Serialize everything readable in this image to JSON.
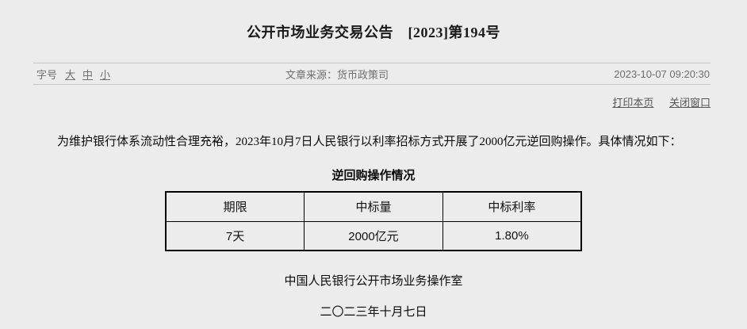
{
  "page": {
    "title": "公开市场业务交易公告　[2023]第194号"
  },
  "meta_bar": {
    "font_size_label": "字号",
    "font_size_options": [
      "大",
      "中",
      "小"
    ],
    "source_label": "文章来源：",
    "source_value": "货币政策司",
    "timestamp": "2023-10-07 09:20:30"
  },
  "actions": {
    "print_label": "打印本页",
    "close_label": "关闭窗口"
  },
  "article": {
    "paragraph": "为维护银行体系流动性合理充裕，2023年10月7日人民银行以利率招标方式开展了2000亿元逆回购操作。具体情况如下：",
    "table_title": "逆回购操作情况",
    "table": {
      "headers": [
        "期限",
        "中标量",
        "中标利率"
      ],
      "rows": [
        [
          "7天",
          "2000亿元",
          "1.80%"
        ]
      ]
    },
    "signature": "中国人民银行公开市场业务操作室",
    "date": "二〇二三年十月七日"
  },
  "colors": {
    "page_background": "#ececec",
    "divider": "#c6c6c6",
    "meta_text": "#6f6f6f",
    "link_text": "#565656",
    "body_text": "#0a0a0a",
    "table_border": "#000000"
  }
}
